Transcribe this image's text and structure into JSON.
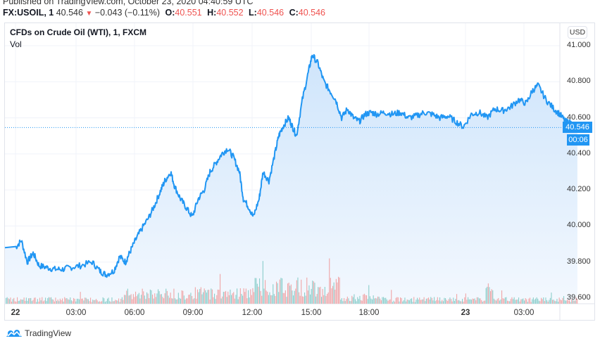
{
  "header": {
    "published": "Published on TradingView.com, October 23, 2020 04:40:59 UTC",
    "symbol": "FX:USOIL, 1",
    "last": "40.546",
    "change": "−0.043 (−0.11%)",
    "change_direction_icon": "triangle-down-icon",
    "ohlc": {
      "o_label": "O:",
      "o": "40.551",
      "h_label": "H:",
      "h": "40.552",
      "l_label": "L:",
      "l": "40.546",
      "c_label": "C:",
      "c": "40.546"
    }
  },
  "legend": {
    "title": "CFDs on Crude Oil (WTI), 1, FXCM",
    "vol": "Vol"
  },
  "price_axis": {
    "currency_button": "USD",
    "last_price_label": "40.546",
    "countdown": "00:06"
  },
  "footer": {
    "brand": "TradingView",
    "brand_icon": "tradingview-logo-icon"
  },
  "colors": {
    "line": "#2196f3",
    "area_top": "#cfe5fb",
    "area_bottom": "#f3f8fe",
    "vol_up": "#26a69a",
    "vol_down": "#ef5350",
    "grid": "#f0f3fa",
    "text_down": "#ef5350"
  },
  "chart_data": {
    "type": "area",
    "title": "CFDs on Crude Oil (WTI), 1, FXCM",
    "symbol": "FX:USOIL",
    "interval": "1 minute",
    "xlabel": "",
    "ylabel": "USD",
    "ylim": [
      39.6,
      41.0
    ],
    "y_ticks": [
      "41.000",
      "40.800",
      "40.600",
      "40.400",
      "40.200",
      "40.000",
      "39.800",
      "39.600"
    ],
    "x_ticks": [
      "22",
      "03:00",
      "06:00",
      "09:00",
      "12:00",
      "15:00",
      "18:00",
      "23",
      "03:00"
    ],
    "grid": true,
    "legend_position": "top-left",
    "last_price": 40.546,
    "x_hours_since_22_0000": [
      0,
      0.3,
      0.6,
      0.9,
      1.2,
      1.6,
      2.0,
      2.4,
      2.8,
      3.3,
      3.9,
      4.3,
      4.6,
      5.0,
      5.3,
      5.6,
      5.8,
      6.1,
      6.4,
      6.8,
      7.1,
      7.4,
      7.6,
      7.9,
      8.1,
      8.4,
      8.7,
      9.0,
      9.3,
      9.6,
      9.9,
      10.2,
      10.5,
      10.8,
      11.1,
      11.4,
      11.6,
      11.9,
      12.1,
      12.4,
      12.6,
      12.9,
      13.2,
      13.4,
      13.6,
      13.9,
      14.1,
      14.3,
      14.6,
      14.9,
      15.1,
      15.4,
      15.7,
      16.0,
      16.3,
      16.6,
      16.9,
      17.2,
      17.5,
      17.8,
      18.1,
      18.4,
      18.8,
      19.2,
      19.6,
      20.0,
      20.4,
      20.8,
      21.2,
      21.6,
      22.0,
      22.4,
      22.8,
      23.2,
      23.6,
      24.0,
      24.4,
      24.8,
      25.2,
      25.6,
      26.0,
      26.3,
      26.6,
      27.0,
      27.4,
      27.7,
      28.0,
      28.3,
      28.6
    ],
    "price_values": [
      39.88,
      39.92,
      39.8,
      39.85,
      39.78,
      39.77,
      39.76,
      39.76,
      39.77,
      39.78,
      39.8,
      39.75,
      39.73,
      39.75,
      39.83,
      39.8,
      39.85,
      39.92,
      39.98,
      40.05,
      40.12,
      40.2,
      40.25,
      40.3,
      40.22,
      40.15,
      40.1,
      40.05,
      40.15,
      40.2,
      40.3,
      40.35,
      40.4,
      40.43,
      40.38,
      40.3,
      40.15,
      40.1,
      40.05,
      40.15,
      40.3,
      40.25,
      40.4,
      40.5,
      40.55,
      40.6,
      40.55,
      40.5,
      40.7,
      40.85,
      40.95,
      40.9,
      40.8,
      40.75,
      40.7,
      40.6,
      40.65,
      40.6,
      40.58,
      40.62,
      40.63,
      40.62,
      40.63,
      40.62,
      40.63,
      40.6,
      40.61,
      40.63,
      40.62,
      40.6,
      40.61,
      40.58,
      40.55,
      40.62,
      40.63,
      40.6,
      40.65,
      40.64,
      40.66,
      40.7,
      40.68,
      40.75,
      40.78,
      40.7,
      40.65,
      40.62,
      40.58,
      40.57,
      40.546
    ],
    "volume_note": "Vol pane overlaid at bottom of price pane, bars colored green (up) / red (down); peaks around 12:00-15:30 and at 23 00:00"
  }
}
